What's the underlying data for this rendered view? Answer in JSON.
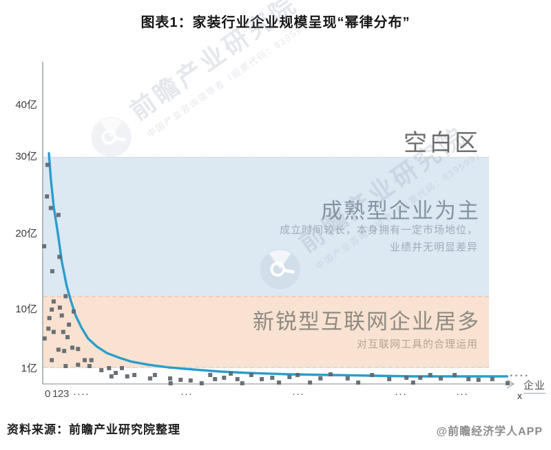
{
  "chart_data": {
    "type": "scatter",
    "title": "图表1：家装行业企业规模呈现“幂律分布”",
    "xlabel": "企业",
    "x_symbol": "x",
    "y_unit": "亿",
    "ylim": [
      0,
      45
    ],
    "grid": false,
    "legend": "none",
    "y_ticks": [
      {
        "label": "40亿",
        "value": 40
      },
      {
        "label": "30亿",
        "value": 30
      },
      {
        "label": "20亿",
        "value": 20
      },
      {
        "label": "10亿",
        "value": 10
      },
      {
        "label": "1亿",
        "value": 1
      }
    ],
    "x_tick_labels": [
      "0",
      "1",
      "2",
      "3",
      "····",
      "···",
      "···",
      "···",
      "···"
    ],
    "curve": {
      "name": "幂律分布曲线",
      "color": "#2b9dcb",
      "continuation": "····",
      "points": [
        [
          1.3,
          30.3
        ],
        [
          1.7,
          26.9
        ],
        [
          2.3,
          23.3
        ],
        [
          3.2,
          19.7
        ],
        [
          4.0,
          16.1
        ],
        [
          5.0,
          12.9
        ],
        [
          5.9,
          10.9
        ],
        [
          6.9,
          8.8
        ],
        [
          8.1,
          7.0
        ],
        [
          9.5,
          5.3
        ],
        [
          11.3,
          4.1
        ],
        [
          13.4,
          3.1
        ],
        [
          15.9,
          2.4
        ],
        [
          18.5,
          1.8
        ],
        [
          22.1,
          1.3
        ],
        [
          26.4,
          0.96
        ],
        [
          31.5,
          0.84
        ],
        [
          37.2,
          0.72
        ],
        [
          43,
          0.64
        ],
        [
          51.7,
          0.56
        ],
        [
          60.3,
          0.52
        ],
        [
          69,
          0.48
        ],
        [
          77.6,
          0.44
        ],
        [
          86.3,
          0.44
        ],
        [
          93.5,
          0.44
        ],
        [
          97.3,
          0.44
        ]
      ]
    },
    "scatter": {
      "name": "企业规模散点(亿)",
      "color": "#5d666d",
      "points": [
        [
          1.0,
          28.7
        ],
        [
          0.9,
          24.6
        ],
        [
          1.7,
          23.1
        ],
        [
          3.3,
          22.2
        ],
        [
          0.3,
          18.1
        ],
        [
          3.5,
          16.7
        ],
        [
          2.0,
          14.8
        ],
        [
          4.8,
          11.5
        ],
        [
          2.3,
          10.8
        ],
        [
          3.6,
          10.0
        ],
        [
          1.9,
          9.7
        ],
        [
          6.5,
          9.4
        ],
        [
          4.0,
          8.8
        ],
        [
          1.4,
          8.4
        ],
        [
          5.5,
          7.4
        ],
        [
          1.2,
          6.8
        ],
        [
          2.3,
          6.3
        ],
        [
          4.3,
          6.3
        ],
        [
          0.4,
          5.3
        ],
        [
          5.2,
          5.5
        ],
        [
          3.3,
          3.6
        ],
        [
          4.5,
          3.4
        ],
        [
          6.2,
          3.9
        ],
        [
          7.4,
          3.7
        ],
        [
          1.9,
          2.0
        ],
        [
          4.8,
          1.1
        ],
        [
          7.4,
          1.3
        ],
        [
          8.8,
          2.0
        ],
        [
          10.2,
          2.0
        ],
        [
          9.8,
          1.1
        ],
        [
          12.3,
          0.8
        ],
        [
          13.9,
          0.92
        ],
        [
          14.4,
          0.44
        ],
        [
          15.3,
          0.64
        ],
        [
          16.6,
          0.92
        ],
        [
          17.7,
          0.44
        ],
        [
          19.2,
          0.52
        ],
        [
          22.5,
          0.32
        ],
        [
          23.5,
          0.52
        ],
        [
          26.7,
          0.32
        ],
        [
          26.8,
          0.04
        ],
        [
          28.9,
          0.24
        ],
        [
          31.0,
          0.2
        ],
        [
          33.3,
          0.04
        ],
        [
          35.1,
          0.52
        ],
        [
          36.1,
          0.28
        ],
        [
          38.0,
          0.36
        ],
        [
          39.4,
          0.6
        ],
        [
          40.8,
          0.28
        ],
        [
          41.8,
          0.04
        ],
        [
          43.7,
          0.52
        ],
        [
          45.9,
          0.28
        ],
        [
          48.1,
          0.36
        ],
        [
          49.5,
          0.08
        ],
        [
          51.7,
          0.4
        ],
        [
          53.4,
          0.52
        ],
        [
          56.0,
          0.08
        ],
        [
          58.2,
          0.32
        ],
        [
          60.3,
          0.56
        ],
        [
          63.9,
          0.32
        ],
        [
          66.1,
          0.08
        ],
        [
          69.0,
          0.52
        ],
        [
          72.6,
          0.28
        ],
        [
          76.2,
          0.36
        ],
        [
          77.6,
          0.08
        ],
        [
          79.1,
          0.36
        ],
        [
          81.2,
          0.52
        ],
        [
          83.4,
          0.32
        ],
        [
          86.3,
          0.52
        ],
        [
          89.2,
          0.28
        ],
        [
          91.3,
          0.24
        ],
        [
          94.2,
          0.28
        ],
        [
          97.4,
          0.04
        ]
      ]
    },
    "regions": [
      {
        "id": "blank",
        "label": "空白区"
      },
      {
        "id": "mature",
        "label": "成熟型企业为主",
        "sub1": "成立时间较长，本身拥有一定市场地位，",
        "sub2": "业绩并无明显差异",
        "fill": "#dce8f2",
        "y_range_yi": [
          11.5,
          32
        ]
      },
      {
        "id": "internet",
        "label": "新锐型互联网企业居多",
        "sub1": "对互联网工具的合理运用",
        "fill": "#f9e2d1",
        "y_range_yi": [
          1,
          11.5
        ]
      }
    ]
  },
  "watermark": {
    "brand": "前瞻产业研究院",
    "tagline": "中国产业咨询领导者（股票代码：839599）"
  },
  "footer": {
    "source": "资料来源：前瞻产业研究院整理",
    "credit": "@前瞻经济学人APP"
  }
}
